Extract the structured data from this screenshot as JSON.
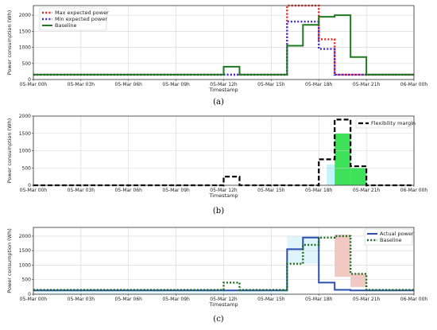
{
  "chart_data": [
    {
      "type": "line",
      "id": "a",
      "caption": "(a)",
      "title": "",
      "xlabel": "Timestamp",
      "ylabel": "Power consumption (Wh)",
      "x_ticks": [
        "05-Mar 00h",
        "05-Mar 03h",
        "05-Mar 06h",
        "05-Mar 09h",
        "05-Mar 12h",
        "05-Mar 15h",
        "05-Mar 18h",
        "05-Mar 21h",
        "06-Mar 00h"
      ],
      "x_range_hours": [
        0,
        24
      ],
      "y_ticks": [
        0,
        500,
        1000,
        1500,
        2000
      ],
      "ylim": [
        0,
        2300
      ],
      "grid": true,
      "legend_position": "top-left",
      "series": [
        {
          "name": "Max expected power",
          "style": "dotted",
          "color": "#e8211d",
          "step": true,
          "x": [
            0,
            11,
            12,
            13,
            16,
            17,
            18,
            19,
            20,
            21,
            24
          ],
          "y": [
            150,
            150,
            150,
            150,
            2300,
            2300,
            1250,
            150,
            150,
            150,
            150
          ]
        },
        {
          "name": "Min expected power",
          "style": "dotted",
          "color": "#3b2bd0",
          "step": true,
          "x": [
            0,
            11,
            12,
            13,
            16,
            17,
            18,
            19,
            20,
            21,
            24
          ],
          "y": [
            150,
            150,
            150,
            150,
            1800,
            1800,
            950,
            150,
            150,
            150,
            150
          ]
        },
        {
          "name": "Baseline",
          "style": "solid",
          "color": "#1f7a1f",
          "step": true,
          "x": [
            0,
            11,
            12,
            13,
            16,
            17,
            18,
            19,
            20,
            21,
            24
          ],
          "y": [
            150,
            150,
            400,
            150,
            1050,
            1700,
            1950,
            2000,
            700,
            150,
            150
          ]
        }
      ]
    },
    {
      "type": "line",
      "id": "b",
      "caption": "(b)",
      "title": "",
      "xlabel": "Timestamp",
      "ylabel": "Power consumption (Wh)",
      "x_ticks": [
        "05-Mar 00h",
        "05-Mar 03h",
        "05-Mar 06h",
        "05-Mar 09h",
        "05-Mar 12h",
        "05-Mar 15h",
        "05-Mar 18h",
        "05-Mar 21h",
        "06-Mar 00h"
      ],
      "x_range_hours": [
        0,
        24
      ],
      "y_ticks": [
        0,
        500,
        1000,
        1500,
        2000
      ],
      "ylim": [
        0,
        2000
      ],
      "grid": true,
      "legend_position": "top-right",
      "series": [
        {
          "name": "Flexibility margin",
          "style": "dashed",
          "color": "#000000",
          "step": true,
          "x": [
            0,
            11,
            12,
            13,
            16,
            18,
            19,
            20,
            21,
            24
          ],
          "y": [
            0,
            0,
            250,
            0,
            0,
            750,
            1900,
            550,
            0,
            0
          ]
        }
      ],
      "fills": [
        {
          "x_range": [
            18.5,
            19
          ],
          "y_range": [
            0,
            600
          ],
          "color": "#bff5ff"
        },
        {
          "x_range": [
            19,
            20
          ],
          "y_range": [
            0,
            1500
          ],
          "color": "#3fe05a"
        },
        {
          "x_range": [
            20,
            21
          ],
          "y_range": [
            0,
            500
          ],
          "color": "#3fe05a"
        }
      ]
    },
    {
      "type": "line",
      "id": "c",
      "caption": "(c)",
      "title": "",
      "xlabel": "Timestamp",
      "ylabel": "Power consumption (Wh)",
      "x_ticks": [
        "05-Mar 00h",
        "05-Mar 03h",
        "05-Mar 06h",
        "05-Mar 09h",
        "05-Mar 12h",
        "05-Mar 15h",
        "05-Mar 18h",
        "05-Mar 21h",
        "06-Mar 00h"
      ],
      "x_range_hours": [
        0,
        24
      ],
      "y_ticks": [
        0,
        500,
        1000,
        1500,
        2000
      ],
      "ylim": [
        0,
        2300
      ],
      "grid": true,
      "legend_position": "top-right",
      "series": [
        {
          "name": "Actual power",
          "style": "solid",
          "color": "#2b4fb0",
          "step": true,
          "x": [
            0,
            16,
            17,
            18,
            19,
            20,
            21,
            24
          ],
          "y": [
            130,
            1550,
            1950,
            400,
            150,
            130,
            130,
            130
          ]
        },
        {
          "name": "Baseline",
          "style": "dotted",
          "color": "#1f6b1f",
          "step": true,
          "x": [
            0,
            11,
            12,
            13,
            16,
            17,
            18,
            19,
            20,
            21,
            24
          ],
          "y": [
            150,
            150,
            400,
            150,
            1050,
            1700,
            1950,
            2000,
            700,
            150,
            150
          ]
        }
      ],
      "fills": [
        {
          "x_range": [
            0,
            16
          ],
          "y_range": [
            0,
            150
          ],
          "color": "#e8fbfd"
        },
        {
          "x_range": [
            16,
            18
          ],
          "y_range": [
            1050,
            2000
          ],
          "color": "#dff4fb"
        },
        {
          "x_range": [
            19,
            20
          ],
          "y_range": [
            600,
            2050
          ],
          "color": "#f3c7c2"
        },
        {
          "x_range": [
            20,
            21
          ],
          "y_range": [
            250,
            700
          ],
          "color": "#f3c7c2"
        }
      ]
    }
  ]
}
